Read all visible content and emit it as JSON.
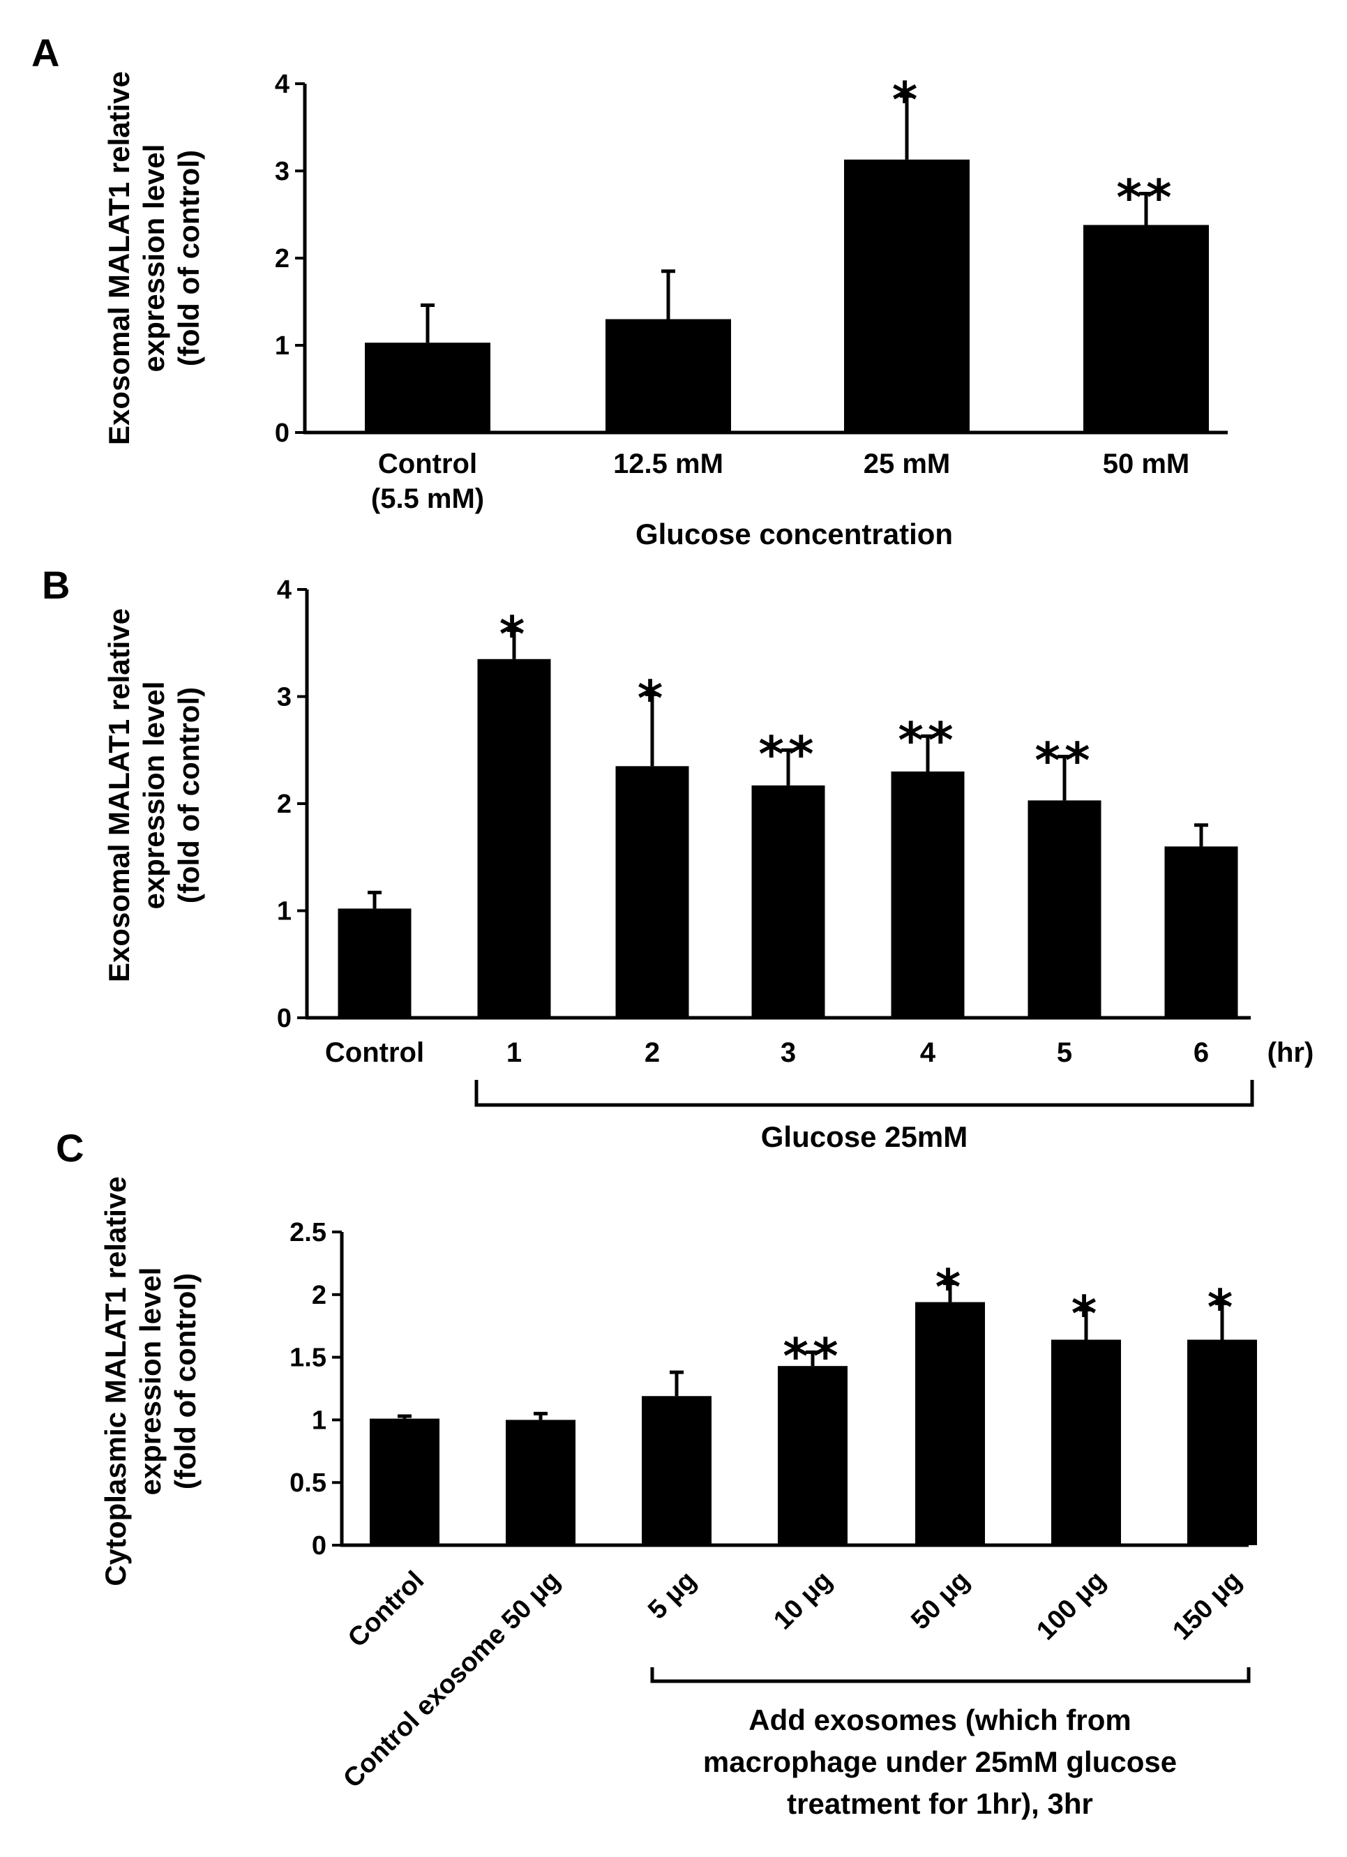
{
  "chart_data": [
    {
      "panel_label": "A",
      "type": "bar",
      "title": "",
      "ylabel_lines": [
        "Exosomal MALAT1 relative",
        "expression level",
        "(fold of control)"
      ],
      "xlabel": "Glucose concentration",
      "ylim": [
        0,
        4
      ],
      "yticks": [
        "0",
        "1",
        "2",
        "3",
        "4"
      ],
      "categories": [
        [
          "Control",
          "(5.5 mM)"
        ],
        [
          "12.5 mM"
        ],
        [
          "25 mM"
        ],
        [
          "50 mM"
        ]
      ],
      "values": [
        1.03,
        1.3,
        3.13,
        2.38
      ],
      "errors": [
        0.43,
        0.55,
        0.73,
        0.36
      ],
      "significance": [
        "",
        "",
        "*",
        "**"
      ],
      "grid": false,
      "bar_color": "#000000"
    },
    {
      "panel_label": "B",
      "type": "bar",
      "title": "",
      "ylabel_lines": [
        "Exosomal MALAT1 relative",
        "expression level",
        "(fold of control)"
      ],
      "xlabel": "",
      "unit_label": "(hr)",
      "bracket_label": "Glucose 25mM",
      "ylim": [
        0,
        4
      ],
      "yticks": [
        "0",
        "1",
        "2",
        "3",
        "4"
      ],
      "categories": [
        [
          "Control"
        ],
        [
          "1"
        ],
        [
          "2"
        ],
        [
          "3"
        ],
        [
          "4"
        ],
        [
          "5"
        ],
        [
          "6"
        ]
      ],
      "values": [
        1.02,
        3.35,
        2.35,
        2.17,
        2.3,
        2.03,
        1.6
      ],
      "errors": [
        0.15,
        0.27,
        0.67,
        0.33,
        0.33,
        0.41,
        0.2
      ],
      "significance": [
        "",
        "*",
        "*",
        "**",
        "**",
        "**",
        ""
      ],
      "grid": false,
      "bar_color": "#000000"
    },
    {
      "panel_label": "C",
      "type": "bar",
      "title": "",
      "ylabel_lines": [
        "Cytoplasmic MALAT1 relative",
        "expression level",
        "(fold of control)"
      ],
      "xlabel": "",
      "bracket_label_lines": [
        "Add exosomes (which from",
        "macrophage under 25mM glucose",
        "treatment for 1hr), 3hr"
      ],
      "ylim": [
        0,
        2.5
      ],
      "yticks": [
        "0",
        "0.5",
        "1",
        "1.5",
        "2",
        "2.5"
      ],
      "categories": [
        [
          "Control"
        ],
        [
          "Control exosome 50 μg"
        ],
        [
          "5 μg"
        ],
        [
          "10 μg"
        ],
        [
          "50 μg"
        ],
        [
          "100 μg"
        ],
        [
          "150 μg"
        ]
      ],
      "values": [
        1.01,
        1.0,
        1.19,
        1.43,
        1.94,
        1.64,
        1.64
      ],
      "errors": [
        0.02,
        0.05,
        0.19,
        0.11,
        0.15,
        0.24,
        0.29
      ],
      "significance": [
        "",
        "",
        "",
        "**",
        "*",
        "*",
        "*"
      ],
      "grid": false,
      "bar_color": "#000000"
    }
  ]
}
